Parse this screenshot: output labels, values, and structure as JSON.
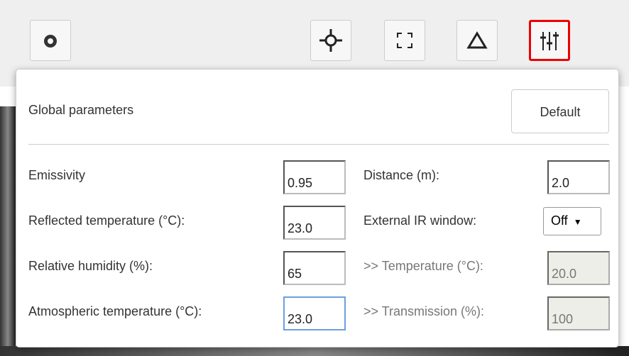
{
  "panel": {
    "title": "Global parameters",
    "default_button": "Default",
    "left_fields": [
      {
        "label": "Emissivity",
        "value": "0.95"
      },
      {
        "label": "Reflected temperature (°C):",
        "value": "23.0"
      },
      {
        "label": "Relative humidity (%):",
        "value": "65"
      },
      {
        "label": "Atmospheric temperature (°C):",
        "value": "23.0",
        "focused": true
      }
    ],
    "right_fields": [
      {
        "label": "Distance (m):",
        "value": "2.0"
      },
      {
        "label": "External IR window:",
        "value": "Off",
        "select": true
      },
      {
        "label": ">> Temperature (°C):",
        "value": "20.0",
        "disabled": true
      },
      {
        "label": ">> Transmission (%):",
        "value": "100",
        "disabled": true
      }
    ]
  }
}
